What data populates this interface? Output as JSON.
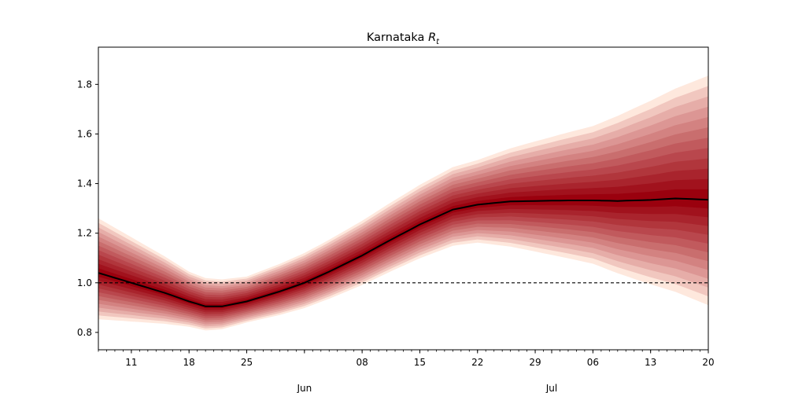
{
  "chart_data": {
    "type": "line",
    "title": "Karnataka",
    "title_math": "R",
    "title_sub": "t",
    "xlabel": "",
    "ylabel": "",
    "x_range": [
      "2020-05-07",
      "2020-07-20"
    ],
    "ylim": [
      0.73,
      1.95
    ],
    "grid": false,
    "legend": "none",
    "x_ticks": [
      {
        "date": "2020-05-11",
        "label": "11"
      },
      {
        "date": "2020-05-18",
        "label": "18"
      },
      {
        "date": "2020-05-25",
        "label": "25"
      },
      {
        "date": "2020-06-08",
        "label": "08"
      },
      {
        "date": "2020-06-15",
        "label": "15"
      },
      {
        "date": "2020-06-22",
        "label": "22"
      },
      {
        "date": "2020-06-29",
        "label": "29"
      },
      {
        "date": "2020-07-06",
        "label": "06"
      },
      {
        "date": "2020-07-13",
        "label": "13"
      },
      {
        "date": "2020-07-20",
        "label": "20"
      }
    ],
    "month_labels": [
      {
        "date": "2020-06-01",
        "label": "Jun"
      },
      {
        "date": "2020-07-01",
        "label": "Jul"
      }
    ],
    "y_ticks": [
      {
        "value": 0.8,
        "label": "0.8"
      },
      {
        "value": 1.0,
        "label": "1.0"
      },
      {
        "value": 1.2,
        "label": "1.2"
      },
      {
        "value": 1.4,
        "label": "1.4"
      },
      {
        "value": 1.6,
        "label": "1.6"
      },
      {
        "value": 1.8,
        "label": "1.8"
      }
    ],
    "reference_line": {
      "y": 1.0,
      "style": "dashed",
      "color": "#000000"
    },
    "median_series": {
      "name": "",
      "color": "#000000",
      "points": [
        {
          "x": "2020-05-07",
          "y": 1.04
        },
        {
          "x": "2020-05-11",
          "y": 1.0
        },
        {
          "x": "2020-05-15",
          "y": 0.96
        },
        {
          "x": "2020-05-18",
          "y": 0.925
        },
        {
          "x": "2020-05-20",
          "y": 0.905
        },
        {
          "x": "2020-05-22",
          "y": 0.905
        },
        {
          "x": "2020-05-25",
          "y": 0.925
        },
        {
          "x": "2020-05-29",
          "y": 0.965
        },
        {
          "x": "2020-06-01",
          "y": 1.0
        },
        {
          "x": "2020-06-04",
          "y": 1.045
        },
        {
          "x": "2020-06-08",
          "y": 1.11
        },
        {
          "x": "2020-06-11",
          "y": 1.165
        },
        {
          "x": "2020-06-15",
          "y": 1.235
        },
        {
          "x": "2020-06-19",
          "y": 1.295
        },
        {
          "x": "2020-06-22",
          "y": 1.315
        },
        {
          "x": "2020-06-26",
          "y": 1.328
        },
        {
          "x": "2020-06-29",
          "y": 1.33
        },
        {
          "x": "2020-07-03",
          "y": 1.332
        },
        {
          "x": "2020-07-06",
          "y": 1.332
        },
        {
          "x": "2020-07-09",
          "y": 1.33
        },
        {
          "x": "2020-07-13",
          "y": 1.334
        },
        {
          "x": "2020-07-16",
          "y": 1.34
        },
        {
          "x": "2020-07-20",
          "y": 1.335
        }
      ]
    },
    "uncertainty_band": {
      "color_light": "#fee5d9",
      "color_dark": "#99000d",
      "levels": 12,
      "half_width": [
        {
          "x": "2020-05-07",
          "w": 0.22
        },
        {
          "x": "2020-05-18",
          "w": 0.12
        },
        {
          "x": "2020-05-25",
          "w": 0.1
        },
        {
          "x": "2020-06-08",
          "w": 0.14
        },
        {
          "x": "2020-06-22",
          "w": 0.18
        },
        {
          "x": "2020-07-06",
          "w": 0.3
        },
        {
          "x": "2020-07-20",
          "w": 0.5
        }
      ]
    }
  }
}
